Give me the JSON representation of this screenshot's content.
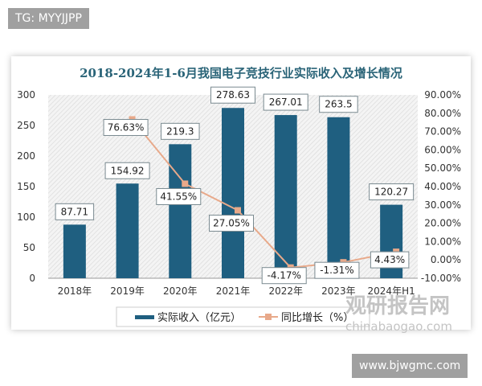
{
  "tags": {
    "top_left": "TG: MYYJJPP",
    "bottom_right": "www.bjwgmc.com"
  },
  "watermark": {
    "name": "观研报告网",
    "url": "chinabaogao.com"
  },
  "chart_data": {
    "type": "bar+line",
    "title": "2018-2024年1-6月我国电子竞技行业实际收入及增长情况",
    "categories": [
      "2018年",
      "2019年",
      "2020年",
      "2021年",
      "2022年",
      "2023年",
      "2024年H1"
    ],
    "series": [
      {
        "name": "实际收入（亿元）",
        "type": "bar",
        "axis": "left",
        "values": [
          87.71,
          154.92,
          219.3,
          278.63,
          267.01,
          263.5,
          120.27
        ],
        "labels": [
          "87.71",
          "154.92",
          "219.3",
          "278.63",
          "267.01",
          "263.5",
          "120.27"
        ],
        "color": "#1f5f80"
      },
      {
        "name": "同比增长（%）",
        "type": "line",
        "axis": "right",
        "values": [
          null,
          76.63,
          41.55,
          27.05,
          -4.17,
          -1.31,
          4.43
        ],
        "labels": [
          "",
          "76.63%",
          "41.55%",
          "27.05%",
          "-4.17%",
          "-1.31%",
          "4.43%"
        ],
        "color": "#e8a98a"
      }
    ],
    "y_left": {
      "range": [
        0,
        300
      ],
      "ticks": [
        "0",
        "50",
        "100",
        "150",
        "200",
        "250",
        "300"
      ]
    },
    "y_right": {
      "range": [
        -10,
        90
      ],
      "ticks": [
        "-10.00%",
        "0.00%",
        "10.00%",
        "20.00%",
        "30.00%",
        "40.00%",
        "50.00%",
        "60.00%",
        "70.00%",
        "80.00%",
        "90.00%"
      ]
    },
    "legend": "bottom",
    "grid": false
  }
}
